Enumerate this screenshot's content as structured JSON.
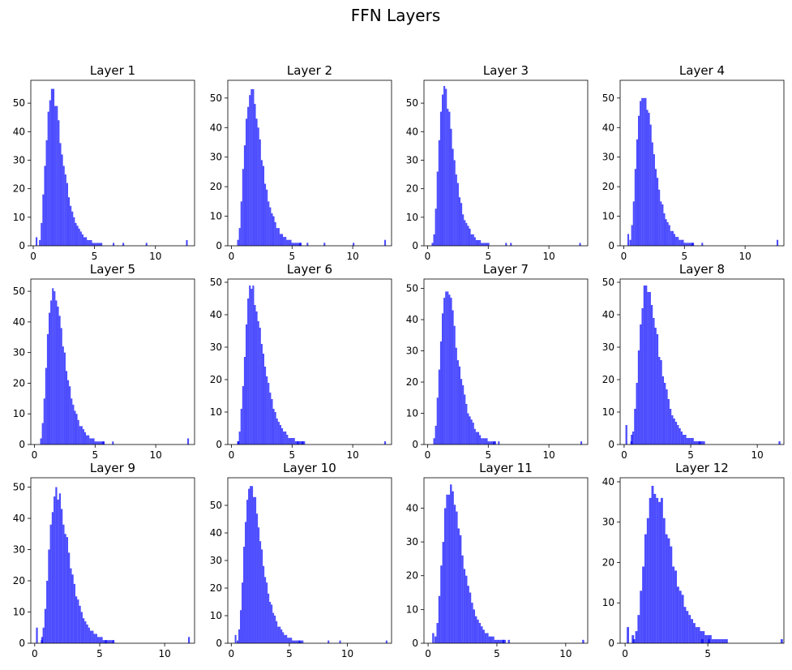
{
  "chart_data": {
    "type": "bar",
    "title": "FFN Layers",
    "bar_color": "#4c4cff",
    "subplots": [
      {
        "title": "Layer 1",
        "xlim": [
          -0.2,
          13.2
        ],
        "ylim": [
          0,
          58
        ],
        "xticks": [
          0,
          5,
          10
        ],
        "yticks": [
          0,
          10,
          20,
          30,
          40,
          50
        ],
        "shape": [
          1.55,
          2.1
        ],
        "peak": 55,
        "spikes": [
          [
            0.2,
            3
          ],
          [
            12.5,
            2
          ],
          [
            9.2,
            1
          ],
          [
            7.3,
            1
          ],
          [
            6.5,
            1
          ]
        ]
      },
      {
        "title": "Layer 2",
        "xlim": [
          -0.3,
          13.2
        ],
        "ylim": [
          0,
          56
        ],
        "xticks": [
          0,
          5,
          10
        ],
        "yticks": [
          0,
          10,
          20,
          30,
          40,
          50
        ],
        "shape": [
          1.6,
          2.2
        ],
        "peak": 53,
        "spikes": [
          [
            12.6,
            2
          ],
          [
            10,
            1
          ],
          [
            7.6,
            1
          ],
          [
            6.2,
            1
          ],
          [
            5.6,
            1
          ]
        ]
      },
      {
        "title": "Layer 3",
        "xlim": [
          -0.3,
          13.2
        ],
        "ylim": [
          0,
          58
        ],
        "xticks": [
          0,
          5,
          10
        ],
        "yticks": [
          0,
          10,
          20,
          30,
          40,
          50
        ],
        "shape": [
          1.4,
          2.2
        ],
        "peak": 56,
        "spikes": [
          [
            12.5,
            1
          ],
          [
            6.8,
            1
          ],
          [
            6.4,
            1
          ]
        ]
      },
      {
        "title": "Layer 4",
        "xlim": [
          -0.3,
          13.2
        ],
        "ylim": [
          0,
          56
        ],
        "xticks": [
          0,
          5,
          10
        ],
        "yticks": [
          0,
          10,
          20,
          30,
          40,
          50
        ],
        "shape": [
          1.6,
          2.2
        ],
        "peak": 53,
        "spikes": [
          [
            0.3,
            4
          ],
          [
            12.6,
            2
          ],
          [
            6.4,
            1
          ],
          [
            5.6,
            1
          ]
        ]
      },
      {
        "title": "Layer 5",
        "xlim": [
          -0.3,
          13.2
        ],
        "ylim": [
          0,
          54
        ],
        "xticks": [
          0,
          5,
          10
        ],
        "yticks": [
          0,
          10,
          20,
          30,
          40,
          50
        ],
        "shape": [
          1.6,
          2.2
        ],
        "peak": 52,
        "spikes": [
          [
            12.6,
            2
          ],
          [
            6.4,
            1
          ],
          [
            5.6,
            1
          ]
        ]
      },
      {
        "title": "Layer 6",
        "xlim": [
          -0.3,
          13.2
        ],
        "ylim": [
          0,
          51
        ],
        "xticks": [
          0,
          5,
          10
        ],
        "yticks": [
          0,
          10,
          20,
          30,
          40,
          50
        ],
        "shape": [
          1.7,
          2.2
        ],
        "peak": 49,
        "spikes": [
          [
            12.6,
            1
          ],
          [
            5.8,
            1
          ],
          [
            5.4,
            1
          ],
          [
            0.5,
            1
          ]
        ]
      },
      {
        "title": "Layer 7",
        "xlim": [
          -0.3,
          13.2
        ],
        "ylim": [
          0,
          53
        ],
        "xticks": [
          0,
          5,
          10
        ],
        "yticks": [
          0,
          10,
          20,
          30,
          40,
          50
        ],
        "shape": [
          1.6,
          2.2
        ],
        "peak": 50,
        "spikes": [
          [
            12.6,
            1
          ],
          [
            5.8,
            1
          ],
          [
            5.4,
            1
          ]
        ]
      },
      {
        "title": "Layer 8",
        "xlim": [
          -0.3,
          12.0
        ],
        "ylim": [
          0,
          51
        ],
        "xticks": [
          0,
          5,
          10
        ],
        "yticks": [
          0,
          10,
          20,
          30,
          40,
          50
        ],
        "shape": [
          1.7,
          2.1
        ],
        "peak": 49,
        "spikes": [
          [
            0.1,
            6
          ],
          [
            0.5,
            3
          ],
          [
            11.6,
            1
          ],
          [
            5.6,
            1
          ]
        ]
      },
      {
        "title": "Layer 9",
        "xlim": [
          -0.3,
          12.3
        ],
        "ylim": [
          0,
          53
        ],
        "xticks": [
          0,
          5,
          10
        ],
        "yticks": [
          0,
          10,
          20,
          30,
          40,
          50
        ],
        "shape": [
          1.7,
          2.1
        ],
        "peak": 50,
        "spikes": [
          [
            0.1,
            5
          ],
          [
            0.5,
            2
          ],
          [
            11.8,
            2
          ],
          [
            6.0,
            1
          ],
          [
            5.4,
            1
          ]
        ]
      },
      {
        "title": "Layer 10",
        "xlim": [
          -0.3,
          13.8
        ],
        "ylim": [
          0,
          60
        ],
        "xticks": [
          0,
          5,
          10
        ],
        "yticks": [
          0,
          10,
          20,
          30,
          40,
          50
        ],
        "shape": [
          1.7,
          2.2
        ],
        "peak": 57,
        "spikes": [
          [
            0.3,
            3
          ],
          [
            13.3,
            1
          ],
          [
            9.3,
            1
          ],
          [
            8.3,
            1
          ],
          [
            5.8,
            1
          ]
        ]
      },
      {
        "title": "Layer 11",
        "xlim": [
          -0.3,
          11.6
        ],
        "ylim": [
          0,
          49
        ],
        "xticks": [
          0,
          5,
          10
        ],
        "yticks": [
          0,
          10,
          20,
          30,
          40
        ],
        "shape": [
          1.6,
          2.1
        ],
        "peak": 47,
        "spikes": [
          [
            0.3,
            3
          ],
          [
            11.2,
            1
          ],
          [
            5.8,
            1
          ],
          [
            5.4,
            1
          ]
        ]
      },
      {
        "title": "Layer 12",
        "xlim": [
          -0.3,
          9.6
        ],
        "ylim": [
          0,
          41
        ],
        "xticks": [
          0,
          5
        ],
        "yticks": [
          0,
          10,
          20,
          30,
          40
        ],
        "shape": [
          1.8,
          2.0
        ],
        "peak": 39,
        "spikes": [
          [
            0.1,
            4
          ],
          [
            0.4,
            2
          ],
          [
            9.4,
            1
          ],
          [
            5.0,
            1
          ],
          [
            4.6,
            1
          ]
        ]
      }
    ]
  }
}
